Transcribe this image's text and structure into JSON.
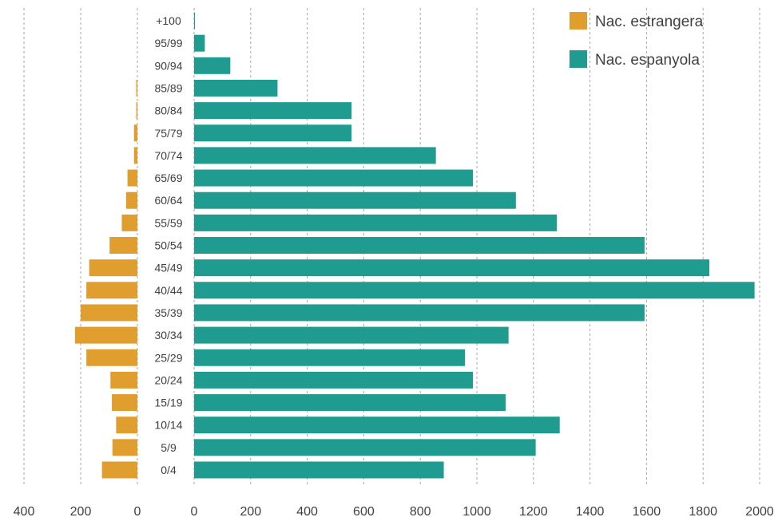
{
  "chart_data": {
    "type": "bar",
    "orientation": "horizontal",
    "layout": "population-pyramid",
    "categories": [
      "0/4",
      "5/9",
      "10/14",
      "15/19",
      "20/24",
      "25/29",
      "30/34",
      "35/39",
      "40/44",
      "45/49",
      "50/54",
      "55/59",
      "60/64",
      "65/69",
      "70/74",
      "75/79",
      "80/84",
      "85/89",
      "90/94",
      "95/99",
      "+100"
    ],
    "series": [
      {
        "name": "Nac. estrangera",
        "color": "#E09E2E",
        "side": "left",
        "values": [
          125,
          88,
          75,
          90,
          95,
          180,
          220,
          200,
          180,
          170,
          98,
          55,
          40,
          35,
          12,
          12,
          4,
          4,
          0,
          0,
          0
        ]
      },
      {
        "name": "Nac. espanyola",
        "color": "#1F9C8F",
        "side": "right",
        "values": [
          883,
          1208,
          1293,
          1102,
          986,
          958,
          1112,
          1593,
          1982,
          1822,
          1593,
          1283,
          1138,
          986,
          855,
          557,
          557,
          295,
          128,
          38,
          3
        ]
      }
    ],
    "left_axis": {
      "ticks": [
        "400",
        "200",
        "0"
      ],
      "range": [
        0,
        400
      ]
    },
    "right_axis": {
      "ticks": [
        "0",
        "200",
        "400",
        "600",
        "800",
        "1000",
        "1200",
        "1400",
        "1600",
        "1800",
        "2000"
      ],
      "range": [
        0,
        2000
      ]
    },
    "grid": "vertical-dashed",
    "legend_position": "top-right",
    "title": "",
    "xlabel": "",
    "ylabel": ""
  }
}
